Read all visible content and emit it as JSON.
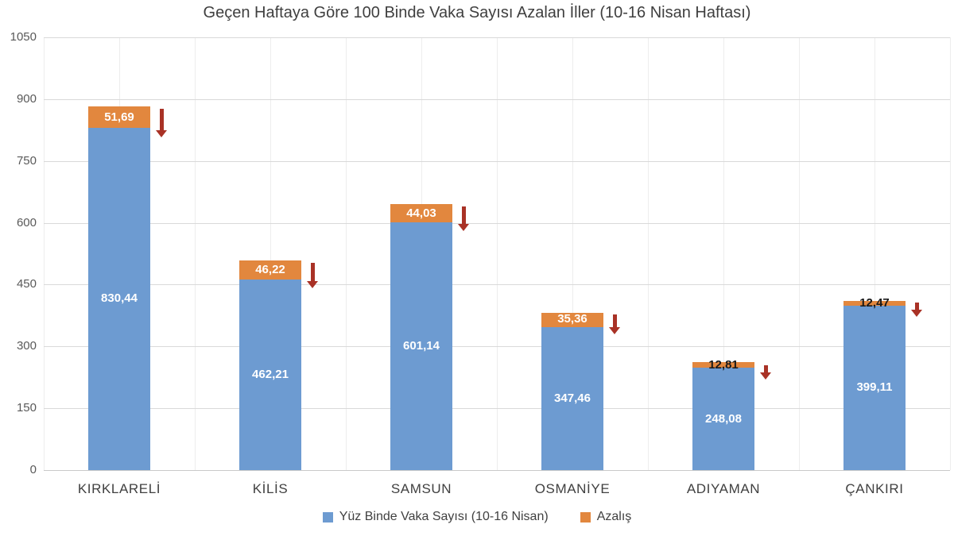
{
  "page": {
    "background": "#ffffff"
  },
  "colors": {
    "bar_blue": "#6d9bd1",
    "bar_orange": "#e2873e",
    "arrow_red": "#a93226",
    "title_text": "#3f3f3f",
    "axis_text": "#595959",
    "category_text": "#404040",
    "gridline": "#d9d9d9",
    "value_label_light": "#ffffff",
    "value_label_dark": "#1a1a1a"
  },
  "chart_data": {
    "type": "bar",
    "stacked": true,
    "title": "Geçen Haftaya Göre 100 Binde Vaka Sayısı Azalan İller (10-16 Nisan Haftası)",
    "categories": [
      "KIRKLARELİ",
      "KİLİS",
      "SAMSUN",
      "OSMANİYE",
      "ADIYAMAN",
      "ÇANKIRI"
    ],
    "series": [
      {
        "name": "Yüz Binde Vaka Sayısı (10-16 Nisan)",
        "color_key": "bar_blue",
        "values": [
          830.44,
          462.21,
          601.14,
          347.46,
          248.08,
          399.11
        ],
        "labels": [
          "830,44",
          "462,21",
          "601,14",
          "347,46",
          "248,08",
          "399,11"
        ]
      },
      {
        "name": "Azalış",
        "color_key": "bar_orange",
        "values": [
          51.69,
          46.22,
          44.03,
          35.36,
          12.81,
          12.47
        ],
        "labels": [
          "51,69",
          "46,22",
          "44,03",
          "35,36",
          "12,81",
          "12,47"
        ]
      }
    ],
    "y_ticks": [
      0,
      150,
      300,
      450,
      600,
      750,
      900,
      1050
    ],
    "ylim": [
      0,
      1050
    ],
    "grid": true,
    "legend_position": "bottom",
    "annotations": "dark-red downward arrow beside the top of each bar indicating decrease"
  }
}
